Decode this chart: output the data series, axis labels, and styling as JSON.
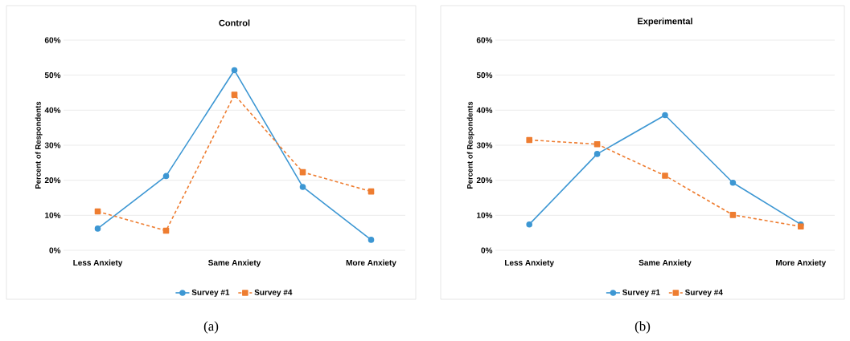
{
  "chart_data": [
    {
      "type": "line",
      "title": "Control",
      "ylabel": "Percent of Respondents",
      "categories": [
        "Less Anxiety",
        null,
        "Same Anxiety",
        null,
        "More Anxiety"
      ],
      "series": [
        {
          "name": "Survey #1",
          "color": "#3d97d3",
          "values": [
            6.2,
            21.2,
            51.4,
            18.1,
            3.0
          ],
          "marker": "circle",
          "line_style": "solid"
        },
        {
          "name": "Survey #4",
          "color": "#ee7d31",
          "values": [
            11.1,
            5.6,
            44.4,
            22.3,
            16.8
          ],
          "marker": "square",
          "line_style": "dashed"
        }
      ],
      "ylim": [
        0,
        60
      ],
      "yticks": [
        {
          "value": 0,
          "label": "0%"
        },
        {
          "value": 10,
          "label": "10%"
        },
        {
          "value": 20,
          "label": "20%"
        },
        {
          "value": 30,
          "label": "30%"
        },
        {
          "value": 40,
          "label": "40%"
        },
        {
          "value": 50,
          "label": "50%"
        },
        {
          "value": 60,
          "label": "60%"
        }
      ],
      "grid": "y",
      "legend": "bottom",
      "annotations": [
        "(a)"
      ]
    },
    {
      "type": "line",
      "title": "Experimental",
      "ylabel": "Percent of Respondents",
      "categories": [
        "Less Anxiety",
        null,
        "Same Anxiety",
        null,
        "More Anxiety"
      ],
      "series": [
        {
          "name": "Survey #1",
          "color": "#3d97d3",
          "values": [
            7.4,
            27.5,
            38.6,
            19.3,
            7.4
          ],
          "marker": "circle",
          "line_style": "solid"
        },
        {
          "name": "Survey #4",
          "color": "#ee7d31",
          "values": [
            31.5,
            30.3,
            21.3,
            10.1,
            6.8
          ],
          "marker": "square",
          "line_style": "dashed"
        }
      ],
      "ylim": [
        0,
        60
      ],
      "yticks": [
        {
          "value": 0,
          "label": "0%"
        },
        {
          "value": 10,
          "label": "10%"
        },
        {
          "value": 20,
          "label": "20%"
        },
        {
          "value": 30,
          "label": "30%"
        },
        {
          "value": 40,
          "label": "40%"
        },
        {
          "value": 50,
          "label": "50%"
        },
        {
          "value": 60,
          "label": "60%"
        }
      ],
      "grid": "y",
      "legend": "bottom",
      "annotations": [
        "(b)"
      ]
    }
  ]
}
